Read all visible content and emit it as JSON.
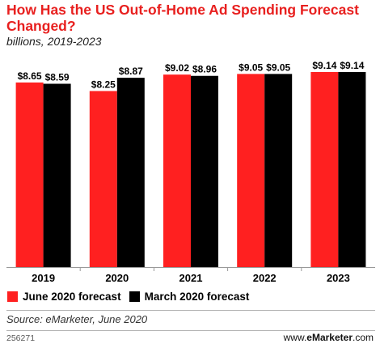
{
  "chart_data": {
    "type": "bar",
    "title": "How Has the US Out-of-Home Ad Spending Forecast Changed?",
    "subtitle": "billions, 2019-2023",
    "categories": [
      "2019",
      "2020",
      "2021",
      "2022",
      "2023"
    ],
    "series": [
      {
        "name": "June 2020 forecast",
        "values": [
          8.65,
          8.25,
          9.02,
          9.05,
          9.14
        ],
        "labels": [
          "$8.65",
          "$8.25",
          "$9.02",
          "$9.05",
          "$9.14"
        ],
        "color": "#ff2020"
      },
      {
        "name": "March 2020 forecast",
        "values": [
          8.59,
          8.87,
          8.96,
          9.05,
          9.14
        ],
        "labels": [
          "$8.59",
          "$8.87",
          "$8.96",
          "$9.05",
          "$9.14"
        ],
        "color": "#000000"
      }
    ],
    "ylim": [
      0,
      9.14
    ],
    "legend_position": "bottom-left",
    "grid": false
  },
  "footer": {
    "source": "Source: eMarketer, June 2020",
    "code": "256271",
    "brand_prefix": "www.",
    "brand_name": "eMarketer",
    "brand_suffix": ".com"
  }
}
